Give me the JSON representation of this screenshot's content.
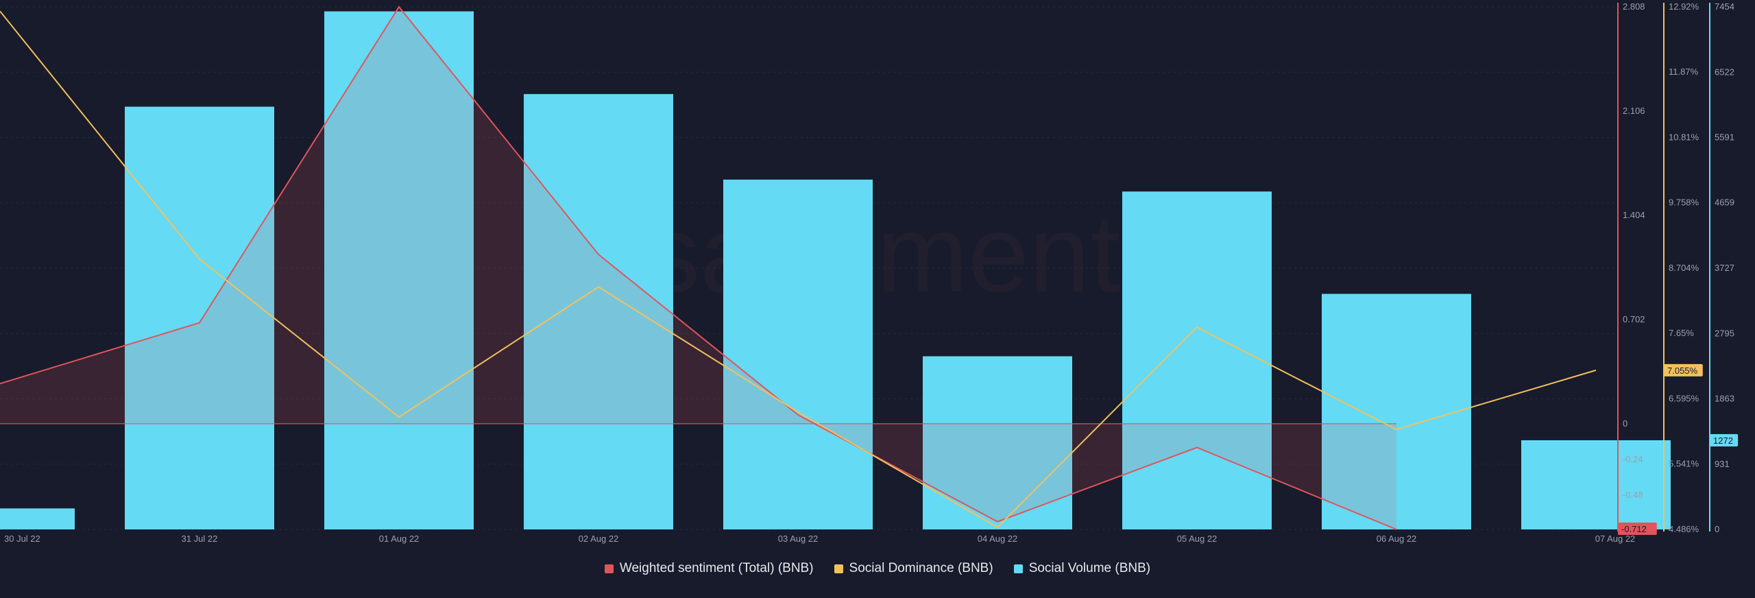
{
  "watermark": "santiment.",
  "colors": {
    "background": "#181b2b",
    "sentiment": "#e0555c",
    "dominance": "#f2c15c",
    "volume": "#65daf4",
    "grid": "#272b3c",
    "axis_text": "#9aa0b0"
  },
  "chart_data": {
    "type": "bar",
    "categories": [
      "30 Jul 22",
      "31 Jul 22",
      "01 Aug 22",
      "02 Aug 22",
      "03 Aug 22",
      "04 Aug 22",
      "05 Aug 22",
      "06 Aug 22",
      "07 Aug 22"
    ],
    "series": [
      {
        "name": "Weighted sentiment (Total) (BNB)",
        "type": "area-line",
        "axis": "sentiment",
        "values": [
          0.27,
          0.68,
          2.808,
          1.14,
          0.06,
          -0.66,
          -0.16,
          -0.712,
          null
        ]
      },
      {
        "name": "Social Dominance (BNB)",
        "type": "line",
        "axis": "dominance",
        "values": [
          12.85,
          8.85,
          6.3,
          8.4,
          6.38,
          4.52,
          7.75,
          6.1,
          7.055
        ]
      },
      {
        "name": "Social Volume (BNB)",
        "type": "bar",
        "axis": "volume",
        "values": [
          300,
          6030,
          7390,
          6210,
          4990,
          2470,
          4820,
          3360,
          1272
        ]
      }
    ],
    "axes": {
      "sentiment": {
        "min": -0.712,
        "max": 2.808,
        "ticks": [
          "2.808",
          "2.106",
          "1.404",
          "0.702",
          "0",
          "-0.24",
          "-0.48"
        ],
        "tick_values": [
          2.808,
          2.106,
          1.404,
          0.702,
          0,
          -0.24,
          -0.48
        ],
        "current_label": "-0.712"
      },
      "dominance": {
        "min": 4.486,
        "max": 12.92,
        "ticks": [
          "12.92%",
          "11.87%",
          "10.81%",
          "9.758%",
          "8.704%",
          "7.65%",
          "6.595%",
          "5.541%",
          "4.486%"
        ],
        "tick_values": [
          12.92,
          11.87,
          10.81,
          9.758,
          8.704,
          7.65,
          6.595,
          5.541,
          4.486
        ],
        "current_label": "7.055%"
      },
      "volume": {
        "min": 0,
        "max": 7454,
        "ticks": [
          "7454",
          "6522",
          "5591",
          "4659",
          "3727",
          "2795",
          "1863",
          "931",
          "0"
        ],
        "tick_values": [
          7454,
          6522,
          5591,
          4659,
          3727,
          2795,
          1863,
          931,
          0
        ],
        "current_label": "1272"
      }
    },
    "legend_position": "bottom-center",
    "grid": true
  },
  "legend": [
    {
      "label": "Weighted sentiment (Total) (BNB)",
      "color": "#e0555c"
    },
    {
      "label": "Social Dominance (BNB)",
      "color": "#f2c15c"
    },
    {
      "label": "Social Volume (BNB)",
      "color": "#65daf4"
    }
  ]
}
